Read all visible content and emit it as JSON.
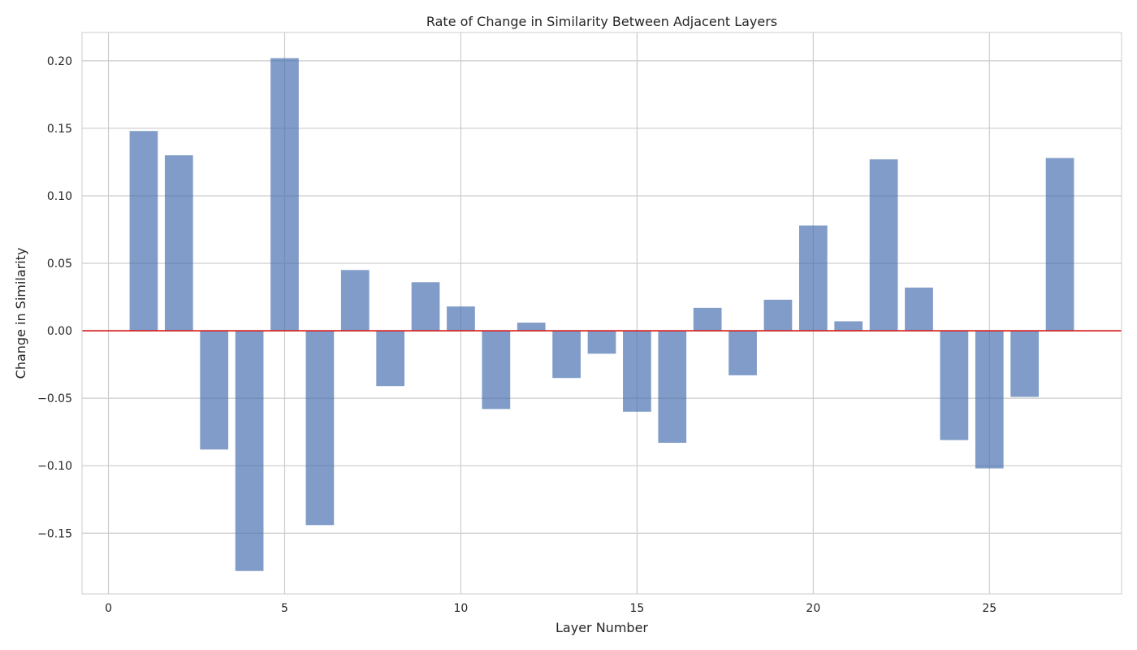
{
  "chart_data": {
    "type": "bar",
    "title": "Rate of Change in Similarity Between Adjacent Layers",
    "xlabel": "Layer Number",
    "ylabel": "Change in Similarity",
    "x": [
      1,
      2,
      3,
      4,
      5,
      6,
      7,
      8,
      9,
      10,
      11,
      12,
      13,
      14,
      15,
      16,
      17,
      18,
      19,
      20,
      21,
      22,
      23,
      24,
      25,
      26,
      27
    ],
    "values": [
      0.148,
      0.13,
      -0.088,
      -0.178,
      0.202,
      -0.144,
      0.045,
      -0.041,
      0.036,
      0.018,
      -0.058,
      0.006,
      -0.035,
      -0.017,
      -0.06,
      -0.083,
      0.017,
      -0.033,
      0.023,
      0.078,
      0.007,
      0.127,
      0.032,
      -0.081,
      -0.102,
      -0.049,
      0.128
    ],
    "xlim": [
      -0.75,
      28.75
    ],
    "ylim": [
      -0.195,
      0.221
    ],
    "xticks": [
      0,
      5,
      10,
      15,
      20,
      25
    ],
    "yticks": [
      -0.15,
      -0.1,
      -0.05,
      0.0,
      0.05,
      0.1,
      0.15,
      0.2
    ],
    "ytick_labels": [
      "−0.15",
      "−0.10",
      "−0.05",
      "0.00",
      "0.05",
      "0.10",
      "0.15",
      "0.20"
    ],
    "reference_line": {
      "y": 0,
      "color": "#d62728"
    },
    "bar_color": "#4c72b0",
    "bar_alpha": 0.7,
    "grid": true,
    "legend": "none"
  }
}
